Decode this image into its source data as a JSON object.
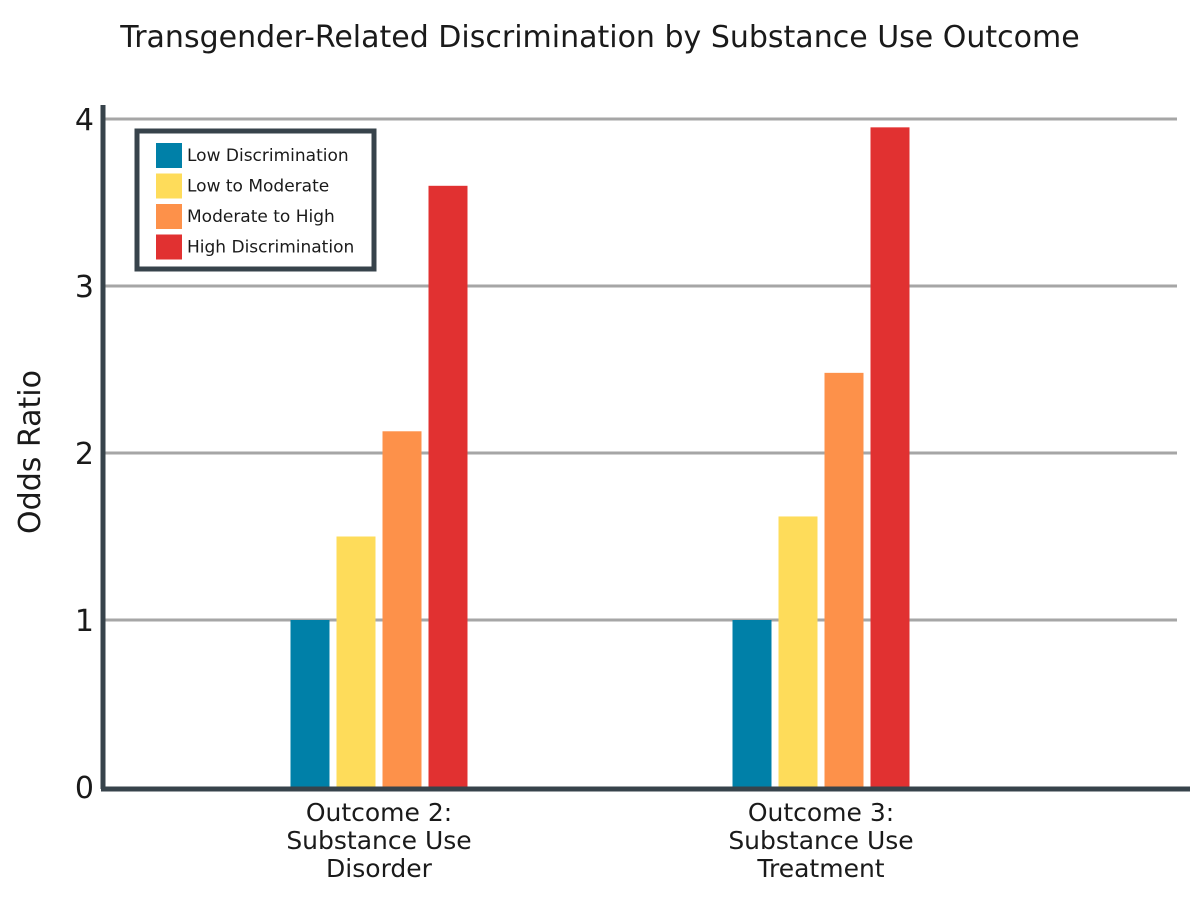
{
  "chart_data": {
    "type": "bar",
    "title": "Transgender-Related Discrimination by Substance Use Outcome",
    "ylabel": "Odds Ratio",
    "xlabel": "",
    "ylim": [
      0,
      4
    ],
    "yticks": [
      "0",
      "1",
      "2",
      "3",
      "4"
    ],
    "grid": true,
    "legend_position": "top-left",
    "categories": [
      [
        "Outcome 2:",
        "Substance Use",
        "Disorder"
      ],
      [
        "Outcome 3:",
        "Substance Use",
        "Treatment"
      ]
    ],
    "series": [
      {
        "name": "Low Discrimination",
        "color": "#0080a8",
        "values": [
          1.0,
          1.0
        ]
      },
      {
        "name": "Low to Moderate",
        "color": "#fedc5a",
        "values": [
          1.5,
          1.62
        ]
      },
      {
        "name": "Moderate to High",
        "color": "#fd914a",
        "values": [
          2.13,
          2.48
        ]
      },
      {
        "name": "High Discrimination",
        "color": "#e13131",
        "values": [
          3.6,
          3.95
        ]
      }
    ],
    "colors": {
      "axis": "#37434b",
      "grid": "#a6a6a6",
      "legend_border": "#37434b"
    }
  }
}
